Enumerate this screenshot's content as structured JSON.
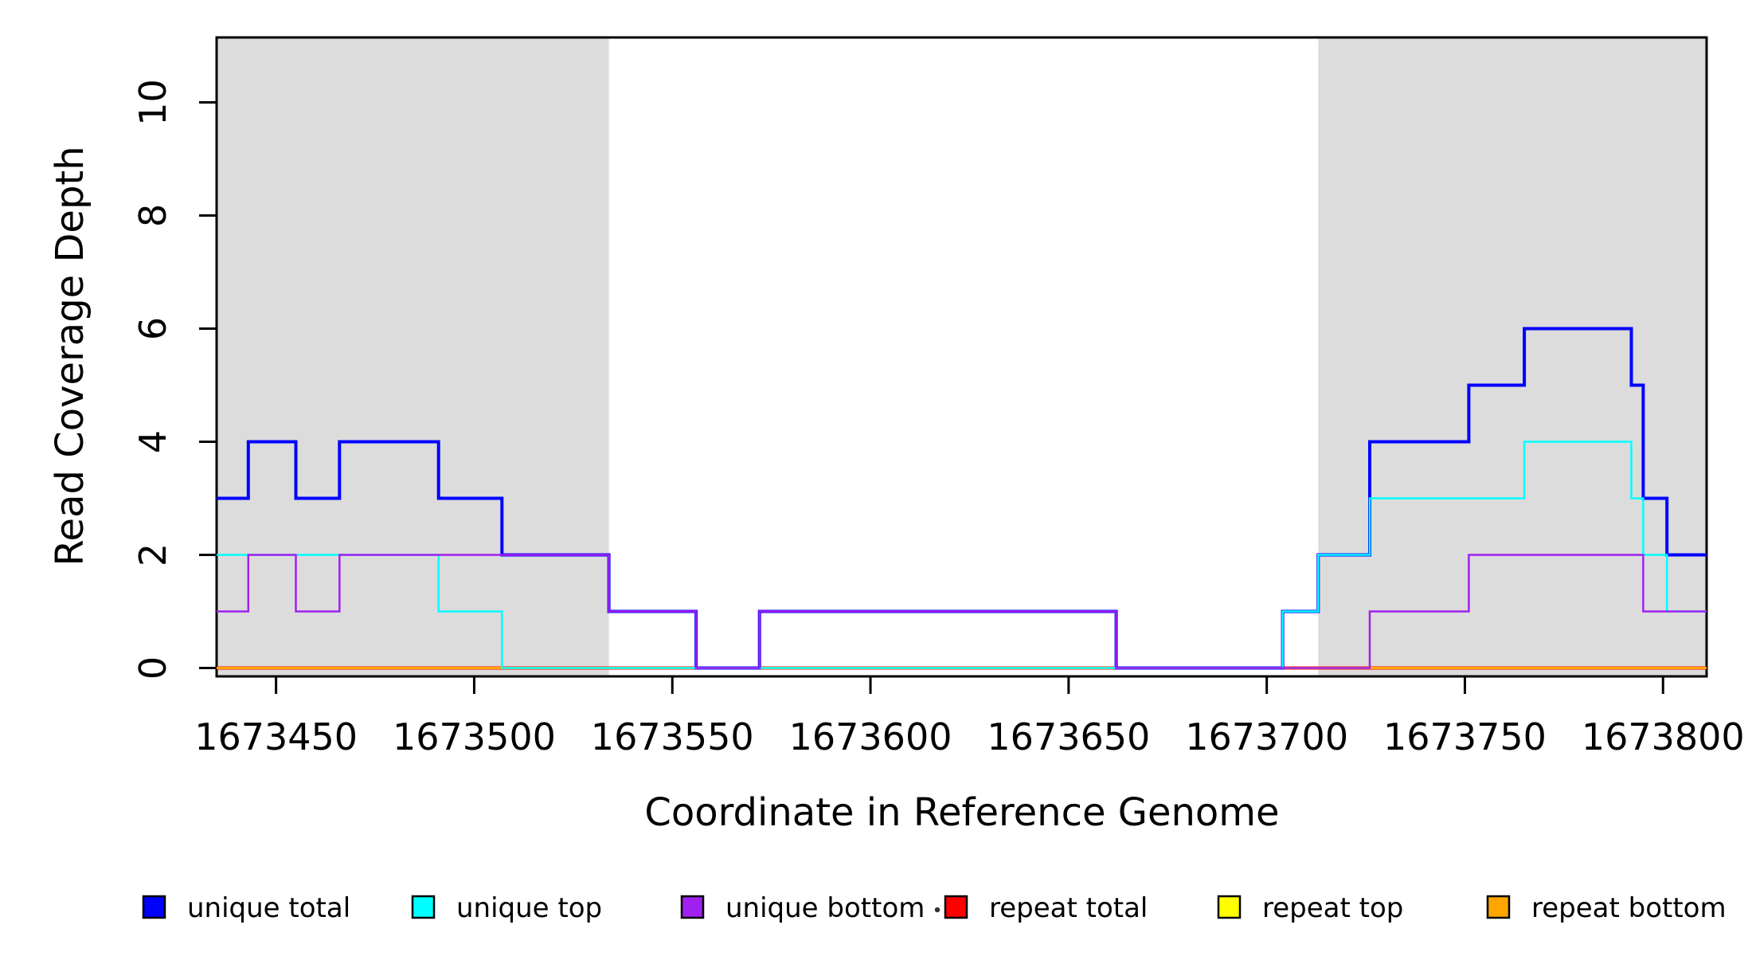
{
  "chart_data": {
    "type": "step-line",
    "title": "",
    "xlabel": "Coordinate in Reference Genome",
    "ylabel": "Read Coverage Depth",
    "xlim": [
      1673435,
      1673811
    ],
    "ylim": [
      0,
      11
    ],
    "x_ticks": [
      1673450,
      1673500,
      1673550,
      1673600,
      1673650,
      1673700,
      1673750,
      1673800
    ],
    "y_ticks": [
      0,
      2,
      4,
      6,
      8,
      10
    ],
    "grid": false,
    "background_color": "#ffffff",
    "shaded_region_color": "#dcdcdc",
    "shaded_regions": [
      {
        "from": 1673435,
        "to": 1673534
      },
      {
        "from": 1673713,
        "to": 1673811
      }
    ],
    "series": [
      {
        "name": "repeat total",
        "color": "#ff0000",
        "width": 4,
        "end": 1673811,
        "steps": [
          [
            1673435,
            0
          ]
        ]
      },
      {
        "name": "repeat top",
        "color": "#ffff00",
        "width": 3,
        "end": 1673811,
        "steps": [
          [
            1673435,
            0
          ]
        ]
      },
      {
        "name": "repeat bottom",
        "color": "#ffa500",
        "width": 3,
        "end": 1673811,
        "steps": [
          [
            1673435,
            0
          ]
        ]
      },
      {
        "name": "unique total",
        "color": "#0000ff",
        "width": 4,
        "end": 1673811,
        "steps": [
          [
            1673435,
            3
          ],
          [
            1673443,
            4
          ],
          [
            1673455,
            3
          ],
          [
            1673466,
            4
          ],
          [
            1673491,
            3
          ],
          [
            1673507,
            2
          ],
          [
            1673534,
            1
          ],
          [
            1673556,
            0
          ],
          [
            1673572,
            1
          ],
          [
            1673662,
            0
          ],
          [
            1673704,
            1
          ],
          [
            1673713,
            2
          ],
          [
            1673726,
            4
          ],
          [
            1673751,
            5
          ],
          [
            1673765,
            6
          ],
          [
            1673792,
            5
          ],
          [
            1673795,
            3
          ],
          [
            1673801,
            2
          ]
        ]
      },
      {
        "name": "unique top",
        "color": "#00ffff",
        "width": 2.5,
        "end": 1673811,
        "steps": [
          [
            1673435,
            2
          ],
          [
            1673491,
            1
          ],
          [
            1673507,
            0
          ],
          [
            1673704,
            1
          ],
          [
            1673713,
            2
          ],
          [
            1673726,
            3
          ],
          [
            1673765,
            4
          ],
          [
            1673792,
            3
          ],
          [
            1673795,
            2
          ],
          [
            1673801,
            1
          ]
        ]
      },
      {
        "name": "unique bottom",
        "color": "#a020f0",
        "width": 2.5,
        "end": 1673811,
        "steps": [
          [
            1673435,
            1
          ],
          [
            1673443,
            2
          ],
          [
            1673455,
            1
          ],
          [
            1673466,
            2
          ],
          [
            1673534,
            1
          ],
          [
            1673556,
            0
          ],
          [
            1673572,
            1
          ],
          [
            1673662,
            0
          ],
          [
            1673726,
            1
          ],
          [
            1673751,
            2
          ],
          [
            1673795,
            1
          ]
        ]
      }
    ],
    "legend_position": "bottom",
    "legend": [
      {
        "label": "unique total",
        "color": "#0000ff"
      },
      {
        "label": "unique top",
        "color": "#00ffff"
      },
      {
        "label": "unique bottom",
        "color": "#a020f0"
      },
      {
        "label": "repeat total",
        "color": "#ff0000"
      },
      {
        "label": "repeat top",
        "color": "#ffff00"
      },
      {
        "label": "repeat bottom",
        "color": "#ffa500"
      }
    ],
    "stray_mark": {
      "x": 1177,
      "y": 1142
    }
  }
}
